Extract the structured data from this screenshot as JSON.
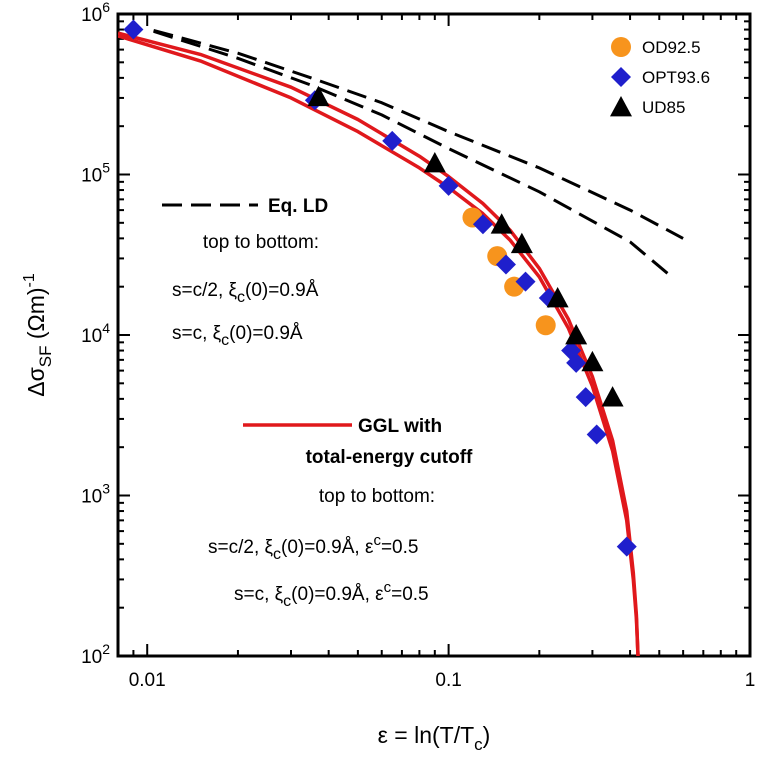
{
  "chart_data": {
    "type": "scatter",
    "xscale": "log",
    "yscale": "log",
    "xlim": [
      0.008,
      1
    ],
    "ylim": [
      100,
      1000000
    ],
    "grid": false,
    "legend_placement": "top-right",
    "x_ticks": [
      0.01,
      0.1,
      1
    ],
    "x_tick_labels": [
      "0.01",
      "0.1",
      "1"
    ],
    "y_ticks": [
      100,
      1000,
      10000,
      100000,
      1000000
    ],
    "y_tick_labels": [
      {
        "base": "10",
        "exp": "2"
      },
      {
        "base": "10",
        "exp": "3"
      },
      {
        "base": "10",
        "exp": "4"
      },
      {
        "base": "10",
        "exp": "5"
      },
      {
        "base": "10",
        "exp": "6"
      }
    ],
    "xlabel": {
      "pre": "ε = ln(T/T",
      "sub": "c",
      "post": ")"
    },
    "ylabel": {
      "pre": "Δσ",
      "sub": "SF",
      "post": " (Ωm)",
      "sup": "-1"
    },
    "series": [
      {
        "name": "OD92.5",
        "marker": "circle",
        "color": "#F7941D",
        "points": [
          [
            0.12,
            54000
          ],
          [
            0.145,
            31000
          ],
          [
            0.165,
            20000
          ],
          [
            0.21,
            11500
          ]
        ]
      },
      {
        "name": "OPT93.6",
        "marker": "diamond",
        "color": "#1F1FCC",
        "points": [
          [
            0.009,
            800000
          ],
          [
            0.036,
            290000
          ],
          [
            0.065,
            162000
          ],
          [
            0.1,
            85000
          ],
          [
            0.13,
            49000
          ],
          [
            0.155,
            27500
          ],
          [
            0.18,
            21500
          ],
          [
            0.215,
            17000
          ],
          [
            0.255,
            8000
          ],
          [
            0.265,
            6700
          ],
          [
            0.285,
            4100
          ],
          [
            0.31,
            2400
          ],
          [
            0.39,
            480
          ]
        ]
      },
      {
        "name": "UD85",
        "marker": "triangle",
        "color": "#000000",
        "points": [
          [
            0.037,
            305000
          ],
          [
            0.09,
            118000
          ],
          [
            0.15,
            49000
          ],
          [
            0.175,
            37000
          ],
          [
            0.23,
            17000
          ],
          [
            0.265,
            10000
          ],
          [
            0.3,
            6800
          ],
          [
            0.35,
            4100
          ]
        ]
      }
    ],
    "curves": [
      {
        "group": "Eq. LD",
        "style": "dashed",
        "color": "#000000",
        "points": [
          [
            0.0105,
            790000
          ],
          [
            0.02,
            570000
          ],
          [
            0.035,
            400000
          ],
          [
            0.06,
            280000
          ],
          [
            0.1,
            185000
          ],
          [
            0.2,
            110000
          ],
          [
            0.4,
            60000
          ],
          [
            0.6,
            40000
          ]
        ]
      },
      {
        "group": "Eq. LD",
        "style": "dashed",
        "color": "#000000",
        "points": [
          [
            0.0105,
            780000
          ],
          [
            0.02,
            530000
          ],
          [
            0.035,
            360000
          ],
          [
            0.06,
            235000
          ],
          [
            0.1,
            145000
          ],
          [
            0.2,
            78000
          ],
          [
            0.4,
            38000
          ],
          [
            0.55,
            23000
          ]
        ]
      },
      {
        "group": "GGL with total-energy cutoff",
        "style": "solid",
        "color": "#E0181C",
        "points": [
          [
            0.008,
            760000
          ],
          [
            0.015,
            560000
          ],
          [
            0.03,
            350000
          ],
          [
            0.05,
            220000
          ],
          [
            0.08,
            130000
          ],
          [
            0.1,
            97000
          ],
          [
            0.13,
            66000
          ],
          [
            0.16,
            45000
          ],
          [
            0.2,
            26000
          ],
          [
            0.25,
            12500
          ],
          [
            0.3,
            5500
          ],
          [
            0.35,
            2200
          ],
          [
            0.39,
            800
          ],
          [
            0.41,
            330
          ],
          [
            0.42,
            180
          ],
          [
            0.425,
            100
          ]
        ]
      },
      {
        "group": "GGL with total-energy cutoff",
        "style": "solid",
        "color": "#E0181C",
        "points": [
          [
            0.008,
            730000
          ],
          [
            0.015,
            510000
          ],
          [
            0.03,
            300000
          ],
          [
            0.05,
            185000
          ],
          [
            0.08,
            110000
          ],
          [
            0.1,
            83000
          ],
          [
            0.13,
            57000
          ],
          [
            0.16,
            39000
          ],
          [
            0.2,
            23000
          ],
          [
            0.25,
            11000
          ],
          [
            0.3,
            4800
          ],
          [
            0.35,
            1900
          ],
          [
            0.39,
            700
          ],
          [
            0.41,
            300
          ],
          [
            0.42,
            170
          ],
          [
            0.425,
            100
          ]
        ]
      }
    ],
    "legend": [
      {
        "name": "OD92.5",
        "marker": "circle",
        "color": "#F7941D"
      },
      {
        "name": "OPT93.6",
        "marker": "diamond",
        "color": "#1F1FCC"
      },
      {
        "name": "UD85",
        "marker": "triangle",
        "color": "#000000"
      }
    ],
    "annotations": {
      "ld_title": "Eq. LD",
      "ld_top_to_bottom": "top to bottom:",
      "ld_line1": {
        "pre": "s=c/2, ξ",
        "sub": "c",
        "post": "(0)=0.9Å"
      },
      "ld_line2": {
        "pre": "s=c,  ξ",
        "sub": "c",
        "post": "(0)=0.9Å"
      },
      "ggl_title_1": "GGL with",
      "ggl_title_2": "total-energy cutoff",
      "ggl_top_to_bottom": "top to bottom:",
      "ggl_line1": {
        "pre": "s=c/2,  ξ",
        "sub": "c",
        "mid": "(0)=0.9Å,  ε",
        "sup": "c",
        "post": "=0.5"
      },
      "ggl_line2": {
        "pre": "s=c,  ξ",
        "sub": "c",
        "mid": "(0)=0.9Å,  ε",
        "sup": "c",
        "post": "=0.5"
      }
    }
  }
}
